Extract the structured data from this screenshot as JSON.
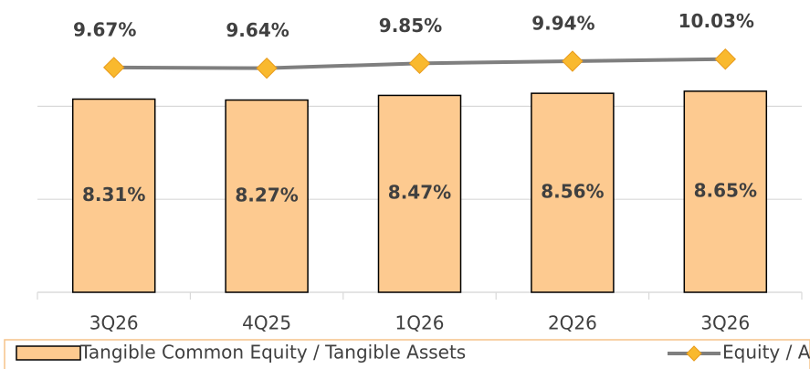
{
  "chart_data": {
    "type": "combo",
    "categories": [
      "3Q26",
      "4Q25",
      "1Q26",
      "2Q26",
      "3Q26"
    ],
    "series": [
      {
        "name": "Tangible Common Equity / Tangible Assets",
        "type": "bar",
        "color": "#fdca90",
        "values": [
          8.31,
          8.27,
          8.47,
          8.56,
          8.65
        ],
        "value_labels": [
          "8.31%",
          "8.27%",
          "8.47%",
          "8.56%",
          "8.65%"
        ]
      },
      {
        "name": "Equity / Assets",
        "type": "line",
        "color": "#7f7f7f",
        "marker_color": "#f9b92e",
        "values": [
          9.67,
          9.64,
          9.85,
          9.94,
          10.03
        ],
        "value_labels": [
          "9.67%",
          "9.64%",
          "9.85%",
          "9.94%",
          "10.03%"
        ]
      }
    ],
    "ylim": [
      0,
      12
    ],
    "yticks": [
      0,
      4,
      8
    ],
    "grid": true
  }
}
